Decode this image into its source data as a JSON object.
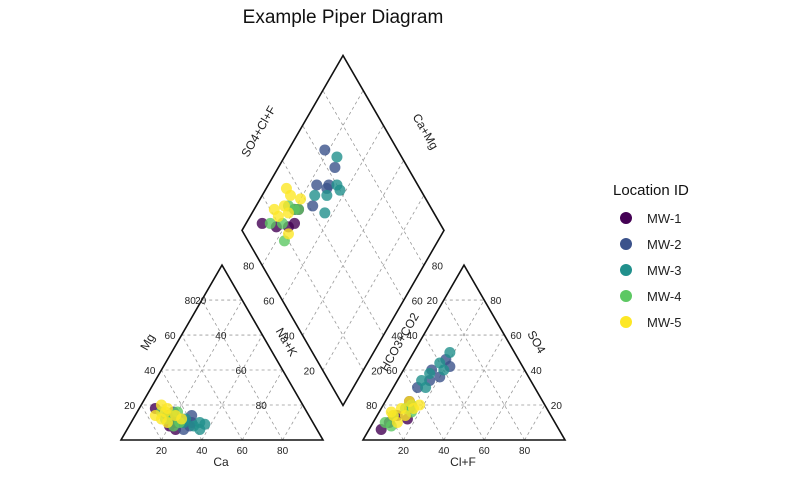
{
  "chart_data": {
    "type": "scatter",
    "subtype": "piper",
    "title": "Example Piper Diagram",
    "axis_labels": {
      "cation_left": "Mg",
      "cation_bottom": "Ca",
      "cation_right": "Na+K",
      "anion_left": "HCO3+CO2",
      "anion_bottom": "Cl+F",
      "anion_right": "SO4",
      "diamond_upper_left": "SO4+Cl+F",
      "diamond_upper_right": "Ca+Mg"
    },
    "ticks": [
      "20",
      "40",
      "60",
      "80"
    ],
    "legend": {
      "title": "Location ID",
      "position": "right",
      "entries": [
        {
          "name": "MW-1",
          "color": "#440154"
        },
        {
          "name": "MW-2",
          "color": "#3B528B"
        },
        {
          "name": "MW-3",
          "color": "#21908C"
        },
        {
          "name": "MW-4",
          "color": "#5DC863"
        },
        {
          "name": "MW-5",
          "color": "#FDE725"
        }
      ]
    },
    "series": [
      {
        "name": "MW-1",
        "cations": [
          [
            68,
            10
          ],
          [
            70,
            14
          ],
          [
            72,
            8
          ],
          [
            66,
            12
          ],
          [
            74,
            18
          ],
          [
            70,
            6
          ]
        ],
        "anions": [
          [
            10,
            14
          ],
          [
            8,
            10
          ],
          [
            14,
            18
          ],
          [
            12,
            22
          ],
          [
            6,
            6
          ],
          [
            16,
            12
          ]
        ]
      },
      {
        "name": "MW-2",
        "cations": [
          [
            64,
            12
          ],
          [
            60,
            10
          ],
          [
            66,
            16
          ],
          [
            62,
            8
          ],
          [
            58,
            14
          ],
          [
            66,
            6
          ]
        ],
        "anions": [
          [
            16,
            34
          ],
          [
            14,
            40
          ],
          [
            18,
            46
          ],
          [
            20,
            36
          ],
          [
            12,
            30
          ],
          [
            22,
            42
          ]
        ]
      },
      {
        "name": "MW-3",
        "cations": [
          [
            60,
            8
          ],
          [
            56,
            10
          ],
          [
            62,
            12
          ],
          [
            58,
            6
          ],
          [
            54,
            9
          ],
          [
            64,
            10
          ]
        ],
        "anions": [
          [
            14,
            38
          ],
          [
            16,
            44
          ],
          [
            18,
            50
          ],
          [
            12,
            34
          ],
          [
            20,
            40
          ],
          [
            16,
            30
          ]
        ]
      },
      {
        "name": "MW-4",
        "cations": [
          [
            68,
            14
          ],
          [
            72,
            12
          ],
          [
            66,
            10
          ],
          [
            70,
            8
          ],
          [
            64,
            16
          ],
          [
            72,
            16
          ]
        ],
        "anions": [
          [
            8,
            14
          ],
          [
            12,
            18
          ],
          [
            10,
            8
          ],
          [
            14,
            20
          ],
          [
            16,
            16
          ],
          [
            6,
            10
          ]
        ]
      },
      {
        "name": "MW-5",
        "cations": [
          [
            70,
            16
          ],
          [
            74,
            12
          ],
          [
            68,
            18
          ],
          [
            72,
            10
          ],
          [
            66,
            14
          ],
          [
            76,
            14
          ],
          [
            64,
            12
          ],
          [
            70,
            20
          ]
        ],
        "anions": [
          [
            10,
            18
          ],
          [
            12,
            22
          ],
          [
            8,
            14
          ],
          [
            14,
            14
          ],
          [
            18,
            20
          ],
          [
            16,
            18
          ],
          [
            6,
            16
          ],
          [
            12,
            10
          ]
        ]
      }
    ]
  }
}
